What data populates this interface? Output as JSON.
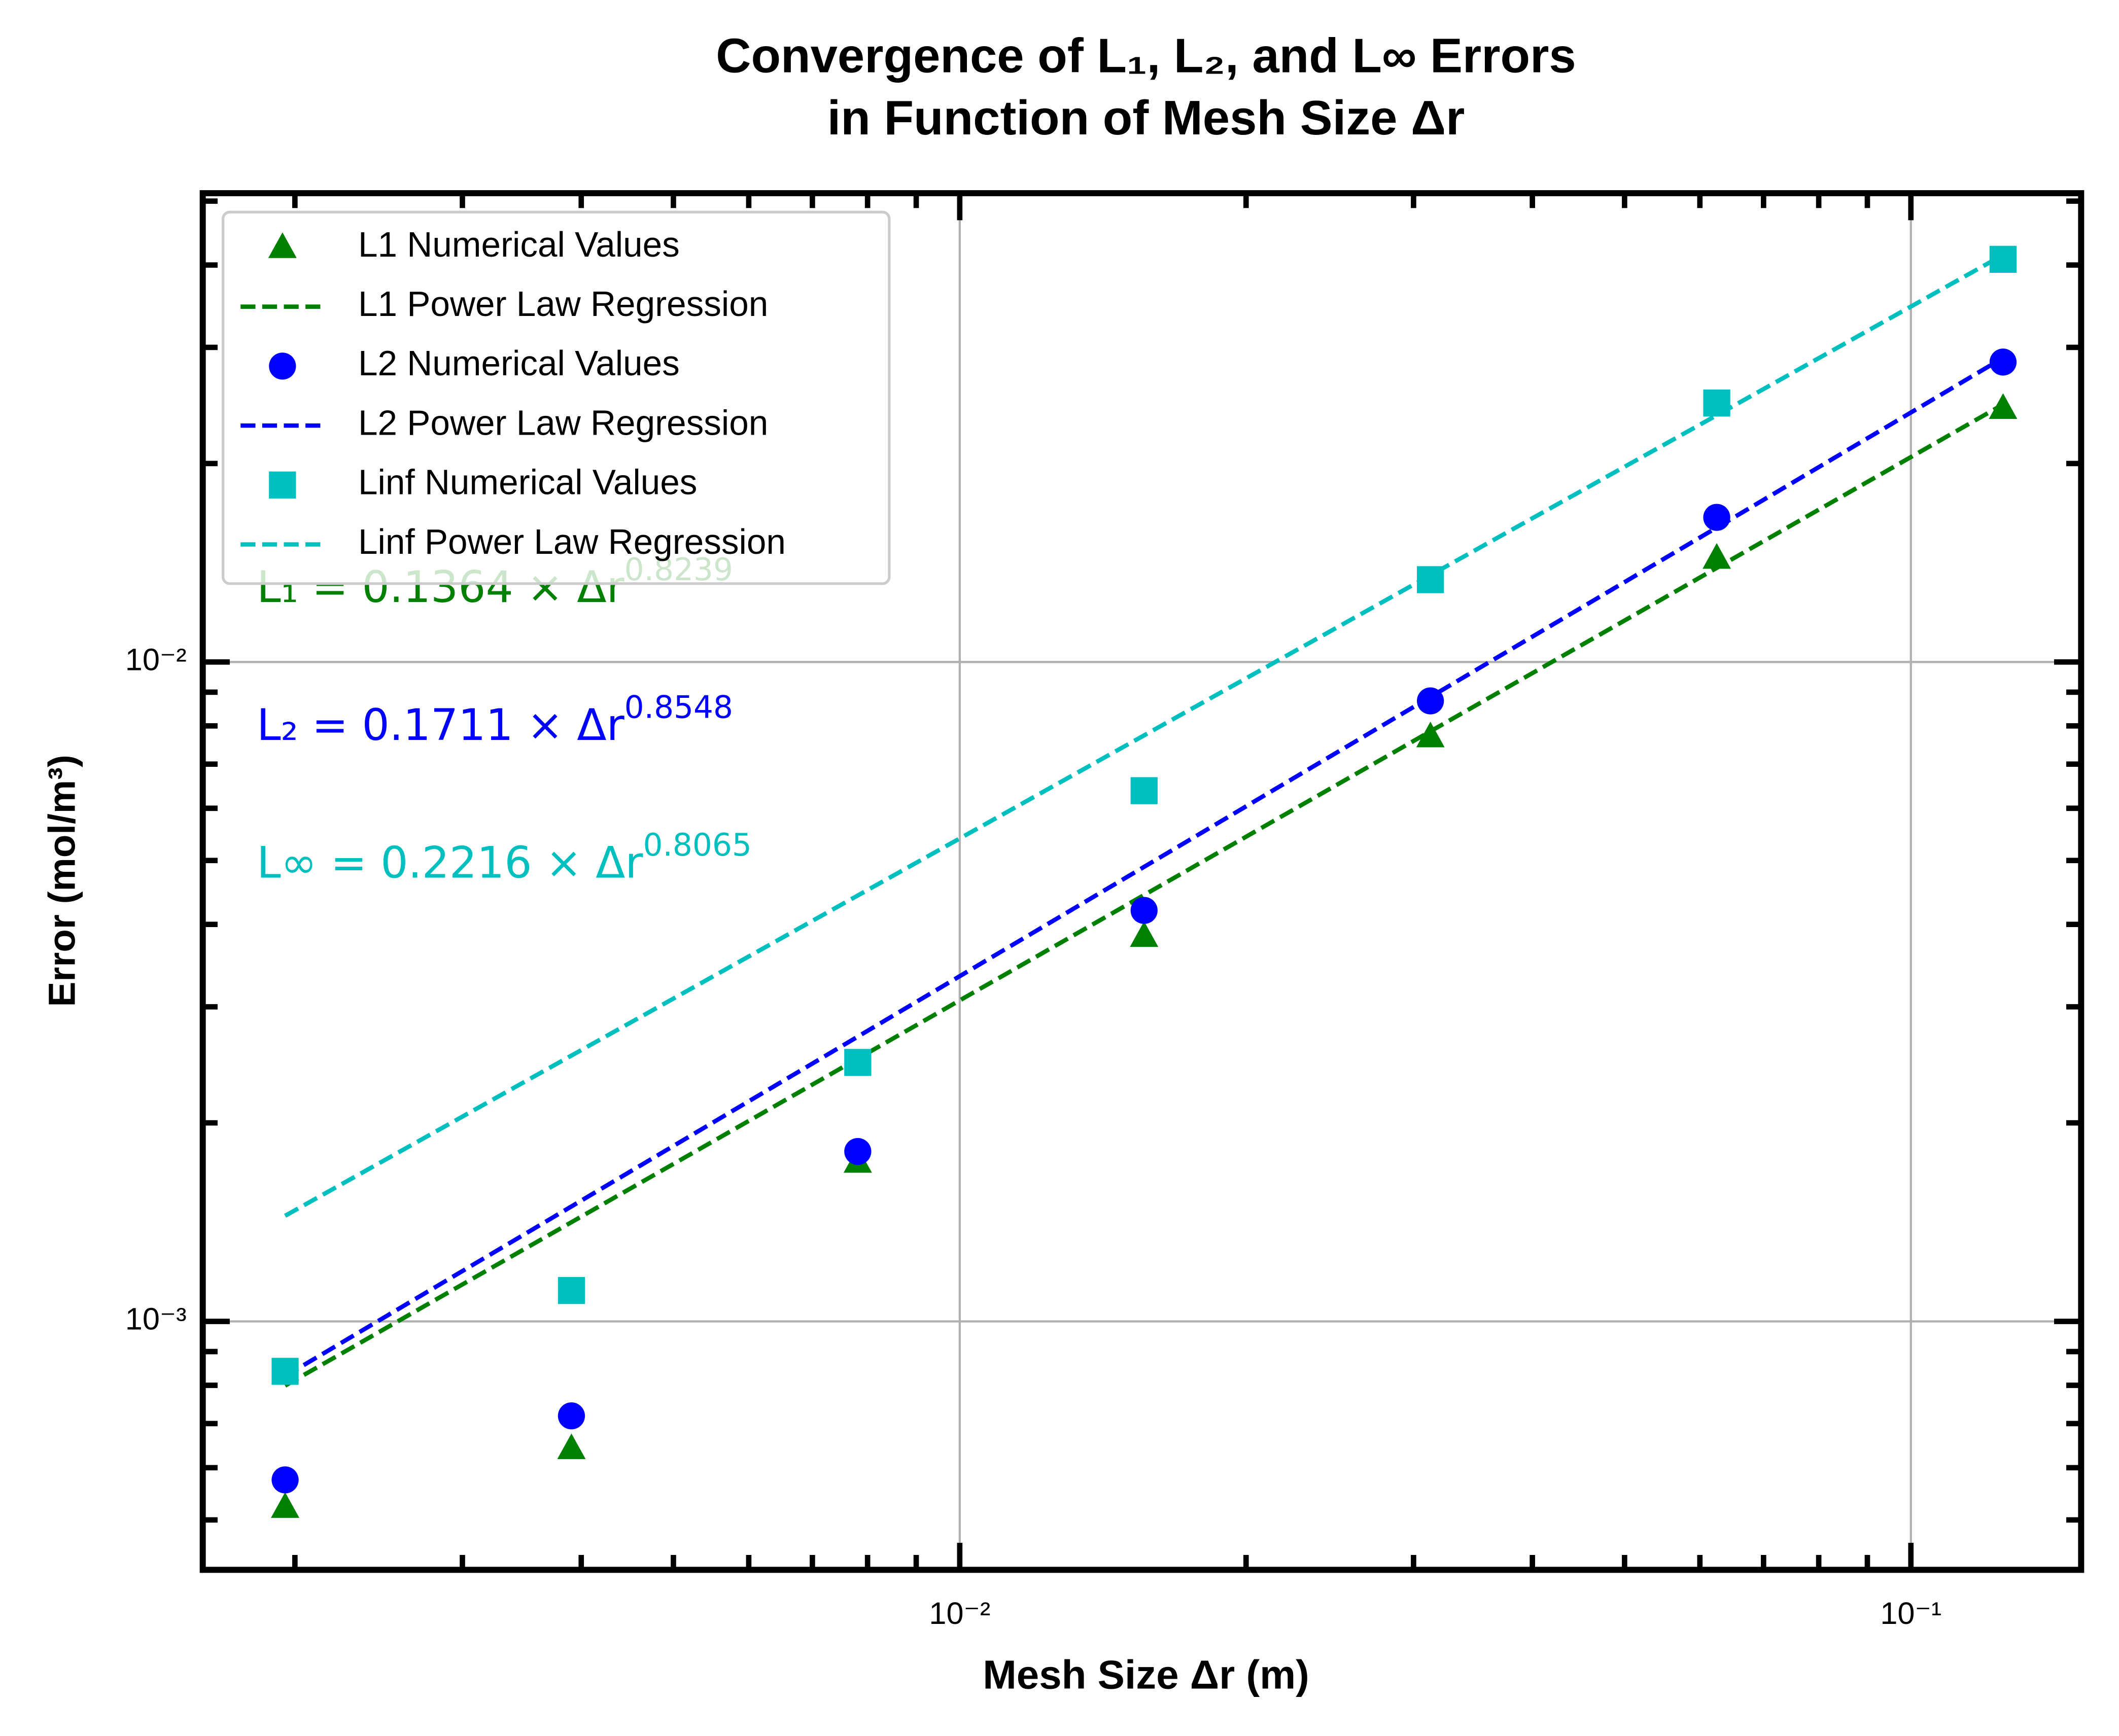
{
  "chart_data": {
    "type": "scatter",
    "title": "Convergence of L₁, L₂, and L∞ Errors",
    "subtitle": "in Function of Mesh Size Δr",
    "xlabel": "Mesh Size Δr (m)",
    "ylabel": "Error (mol/m³)",
    "log_x": true,
    "log_y": true,
    "grid": true,
    "legend": "upper left",
    "xlim": [
      0.0016,
      0.151
    ],
    "ylim": [
      0.00042,
      0.0514
    ],
    "xticks": [
      {
        "value": 0.01,
        "label": "10⁻²"
      },
      {
        "value": 0.1,
        "label": "10⁻¹"
      }
    ],
    "yticks": [
      {
        "value": 0.001,
        "label": "10⁻³"
      },
      {
        "value": 0.01,
        "label": "10⁻²"
      }
    ],
    "x": [
      0.001953125,
      0.00390625,
      0.0078125,
      0.015625,
      0.03125,
      0.0625,
      0.125
    ],
    "series": [
      {
        "name": "L1 Numerical Values",
        "kind": "marker",
        "marker": "triangle",
        "color": "#008000",
        "values": [
          0.000523,
          0.000642,
          0.001745,
          0.00384,
          0.00771,
          0.01438,
          0.02427
        ]
      },
      {
        "name": "L1 Power Law Regression",
        "kind": "dashed",
        "color": "#008000",
        "values": [
          0.000799,
          0.001414,
          0.002503,
          0.004432,
          0.00785,
          0.01389,
          0.02458
        ]
      },
      {
        "name": "L2 Numerical Values",
        "kind": "marker",
        "marker": "circle",
        "color": "#0000ff",
        "values": [
          0.000575,
          0.000719,
          0.00181,
          0.0042,
          0.00873,
          0.01657,
          0.0285
        ]
      },
      {
        "name": "L2 Power Law Regression",
        "kind": "dashed",
        "color": "#0000ff",
        "values": [
          0.000826,
          0.001494,
          0.002703,
          0.00489,
          0.00885,
          0.01599,
          0.02892
        ]
      },
      {
        "name": "Linf Numerical Values",
        "kind": "marker",
        "marker": "square",
        "color": "#00bfbf",
        "values": [
          0.00084,
          0.001114,
          0.00247,
          0.00638,
          0.01333,
          0.0247,
          0.0408
        ]
      },
      {
        "name": "Linf Power Law Regression",
        "kind": "dashed",
        "color": "#00bfbf",
        "values": [
          0.001446,
          0.00253,
          0.004425,
          0.00774,
          0.01354,
          0.02367,
          0.04143
        ]
      }
    ],
    "annotations": [
      {
        "text": "L₁ = 0.1364 × Δr",
        "exponent": "0.8239",
        "color": "#008000"
      },
      {
        "text": "L₂ = 0.1711 × Δr",
        "exponent": "0.8548",
        "color": "#0000ff"
      },
      {
        "text": "L∞ = 0.2216 × Δr",
        "exponent": "0.8065",
        "color": "#00bfbf"
      }
    ]
  }
}
